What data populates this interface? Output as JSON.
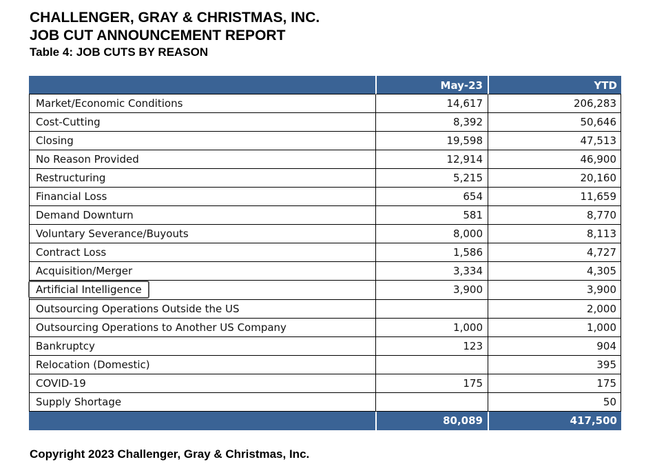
{
  "title1": "CHALLENGER, GRAY & CHRISTMAS, INC.",
  "title2": "JOB CUT ANNOUNCEMENT REPORT",
  "title3": "Table 4: JOB CUTS BY REASON",
  "columns": [
    "",
    "May-23",
    "YTD"
  ],
  "rows": [
    [
      "Market/Economic Conditions",
      "14,617",
      "206,283"
    ],
    [
      "Cost-Cutting",
      "8,392",
      "50,646"
    ],
    [
      "Closing",
      "19,598",
      "47,513"
    ],
    [
      "No Reason Provided",
      "12,914",
      "46,900"
    ],
    [
      "Restructuring",
      "5,215",
      "20,160"
    ],
    [
      "Financial Loss",
      "654",
      "11,659"
    ],
    [
      "Demand Downturn",
      "581",
      "8,770"
    ],
    [
      "Voluntary Severance/Buyouts",
      "8,000",
      "8,113"
    ],
    [
      "Contract Loss",
      "1,586",
      "4,727"
    ],
    [
      "Acquisition/Merger",
      "3,334",
      "4,305"
    ],
    [
      "Artificial Intelligence",
      "3,900",
      "3,900"
    ],
    [
      "Outsourcing Operations Outside the US",
      "",
      "2,000"
    ],
    [
      "Outsourcing Operations to Another US Company",
      "1,000",
      "1,000"
    ],
    [
      "Bankruptcy",
      "123",
      "904"
    ],
    [
      "Relocation (Domestic)",
      "",
      "395"
    ],
    [
      "COVID-19",
      "175",
      "175"
    ],
    [
      "Supply Shortage",
      "",
      "50"
    ]
  ],
  "totals": [
    "",
    "80,089",
    "417,500"
  ],
  "highlighted_row": "Artificial Intelligence",
  "copyright": "Copyright 2023 Challenger, Gray & Christmas, Inc."
}
